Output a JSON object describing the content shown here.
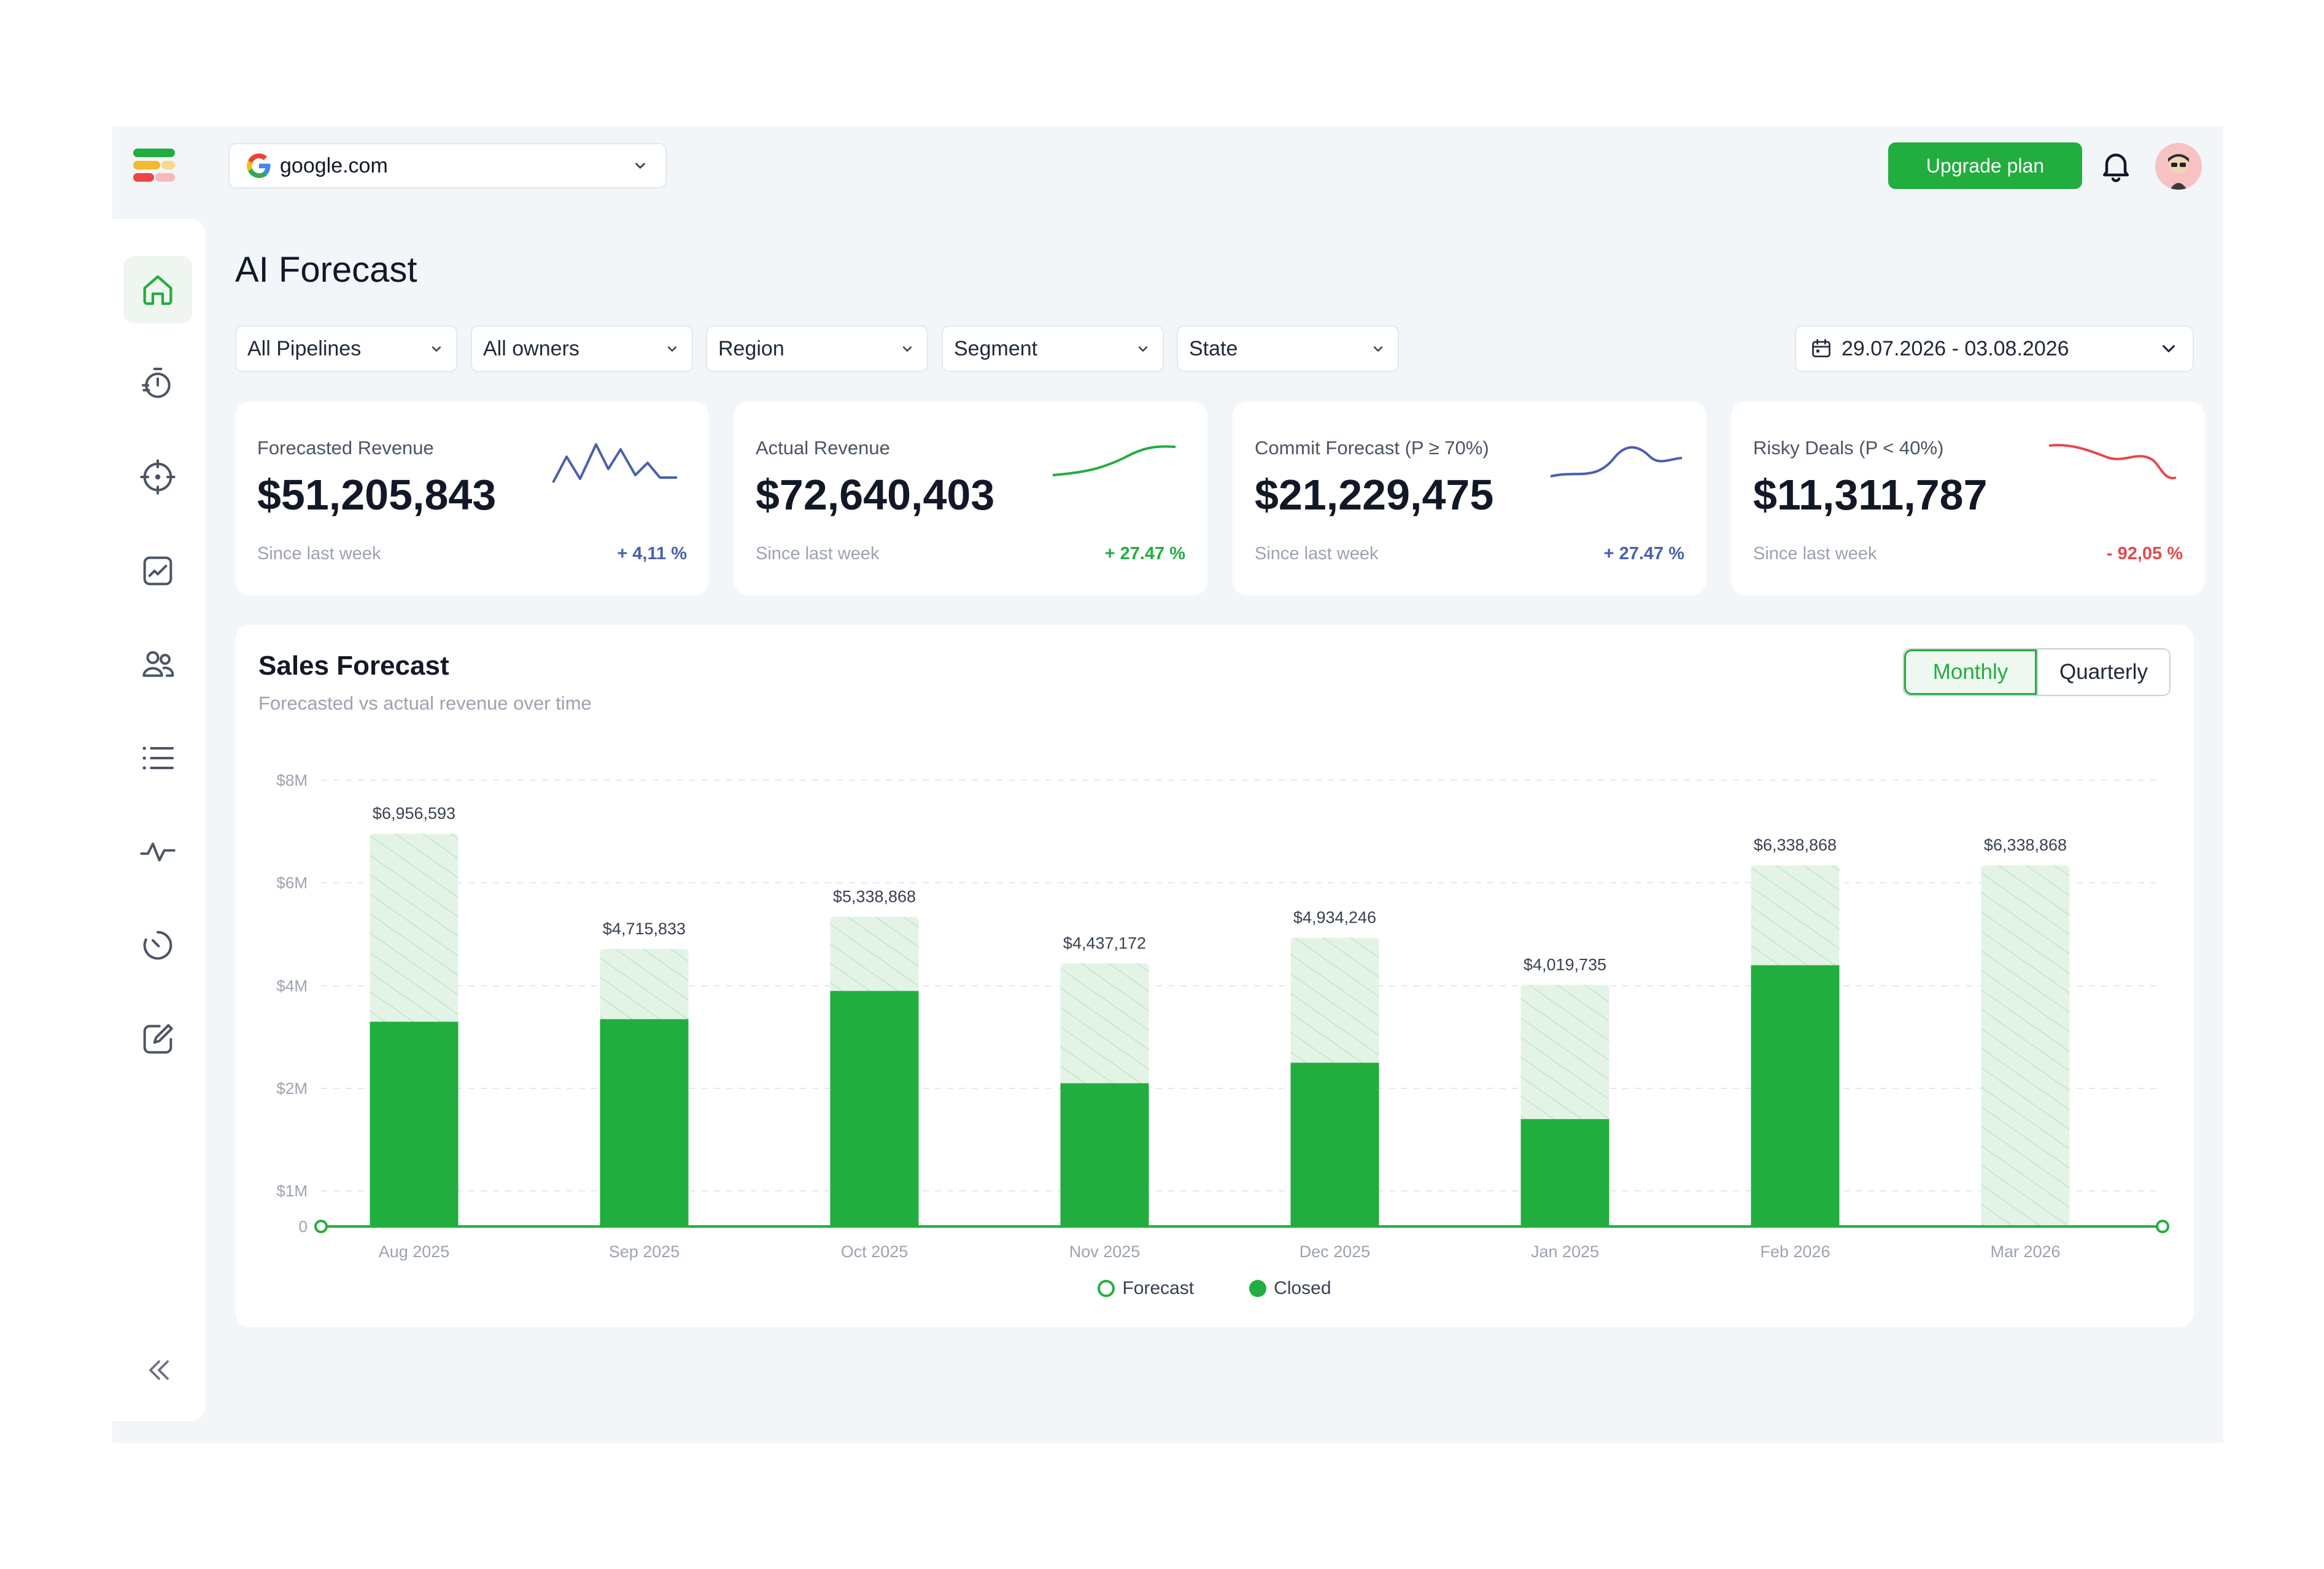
{
  "header": {
    "site": "google.com",
    "site_icon": "google-g-icon",
    "upgrade_label": "Upgrade plan"
  },
  "sidebar": {
    "items": [
      {
        "icon": "home-icon",
        "active": true
      },
      {
        "icon": "timer-icon"
      },
      {
        "icon": "target-icon"
      },
      {
        "icon": "chart-line-icon"
      },
      {
        "icon": "users-icon"
      },
      {
        "icon": "list-icon"
      },
      {
        "icon": "activity-icon"
      },
      {
        "icon": "clock-icon"
      },
      {
        "icon": "edit-icon"
      }
    ],
    "collapse_icon": "chevrons-left-icon"
  },
  "page": {
    "title": "AI Forecast"
  },
  "filters": {
    "pipelines": "All Pipelines",
    "owners": "All owners",
    "region": "Region",
    "segment": "Segment",
    "state": "State",
    "date_range": "29.07.2026 - 03.08.2026"
  },
  "kpis": [
    {
      "label": "Forecasted Revenue",
      "value": "$51,205,843",
      "since": "Since last week",
      "delta": "+ 4,11 %",
      "color": "#4a5fb0"
    },
    {
      "label": "Actual Revenue",
      "value": "$72,640,403",
      "since": "Since last week",
      "delta": "+ 27.47 %",
      "color": "#22ad3f"
    },
    {
      "label": "Commit Forecast (P ≥ 70%)",
      "value": "$21,229,475",
      "since": "Since last week",
      "delta": "+ 27.47 %",
      "color": "#4a5fb0"
    },
    {
      "label": "Risky Deals (P < 40%)",
      "value": "$11,311,787",
      "since": "Since last week",
      "delta": "- 92,05 %",
      "color": "#e5484d"
    }
  ],
  "sales_forecast": {
    "title": "Sales Forecast",
    "subtitle": "Forecasted vs actual revenue over time",
    "toggle": {
      "monthly": "Monthly",
      "quarterly": "Quarterly",
      "selected": "Monthly"
    },
    "legend": {
      "forecast": "Forecast",
      "closed": "Closed"
    }
  },
  "colors": {
    "brand": "#22ad3f",
    "forecast_fill": "#e3f4e7",
    "text_muted": "#9ca3af"
  },
  "chart_data": {
    "type": "bar",
    "title": "Sales Forecast",
    "subtitle": "Forecasted vs actual revenue over time",
    "categories": [
      "Aug 2025",
      "Sep 2025",
      "Oct 2025",
      "Nov 2025",
      "Dec 2025",
      "Jan 2025",
      "Feb 2026",
      "Mar 2026"
    ],
    "y_tick_labels": [
      "0",
      "$1M",
      "$2M",
      "$4M",
      "$6M",
      "$8M"
    ],
    "y_ticks": [
      0,
      1000000,
      2000000,
      4000000,
      6000000,
      8000000
    ],
    "ylim": [
      0,
      8000000
    ],
    "grid": true,
    "legend_position": "bottom-center",
    "series": [
      {
        "name": "Forecast",
        "values": [
          6956593,
          4715833,
          5338868,
          4437172,
          4934246,
          4019735,
          6338868,
          6338868
        ],
        "labels": [
          "$6,956,593",
          "$4,715,833",
          "$5,338,868",
          "$4,437,172",
          "$4,934,246",
          "$4,019,735",
          "$6,338,868",
          "$6,338,868"
        ]
      },
      {
        "name": "Closed",
        "values": [
          3300000,
          3350000,
          3900000,
          2100000,
          2500000,
          1700000,
          4400000,
          0
        ]
      }
    ]
  }
}
